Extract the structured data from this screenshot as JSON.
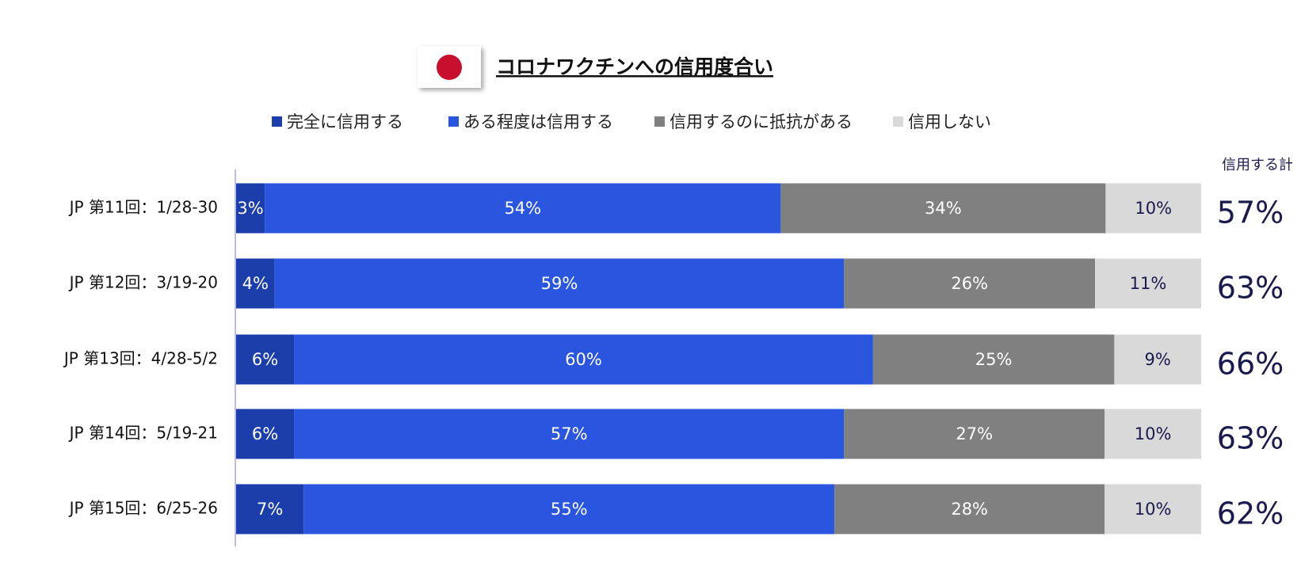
{
  "chart_data": {
    "type": "stacked-bar-horizontal",
    "title": "コロナワクチンへの信用度合い",
    "categories": [
      "JP 第11回：1/28-30",
      "JP 第12回：3/19-20",
      "JP 第13回：4/28-5/2",
      "JP 第14回：5/19-21",
      "JP 第15回：6/25-26"
    ],
    "series": [
      {
        "name": "完全に信用する",
        "color": "#1b3eab",
        "label_color": "#ffffff",
        "values": [
          3,
          4,
          6,
          6,
          7
        ],
        "value_labels": [
          "3%",
          "4%",
          "6%",
          "6%",
          "7%"
        ]
      },
      {
        "name": "ある程度は信用する",
        "color": "#2a55df",
        "label_color": "#ffffff",
        "values": [
          54,
          59,
          60,
          57,
          55
        ],
        "value_labels": [
          "54%",
          "59%",
          "60%",
          "57%",
          "55%"
        ]
      },
      {
        "name": "信用するのに抵抗がある",
        "color": "#808080",
        "label_color": "#ffffff",
        "values": [
          34,
          26,
          25,
          27,
          28
        ],
        "value_labels": [
          "34%",
          "26%",
          "25%",
          "27%",
          "28%"
        ]
      },
      {
        "name": "信用しない",
        "color": "#d9d9d9",
        "label_color": "#1a1a4e",
        "values": [
          10,
          11,
          9,
          10,
          10
        ],
        "value_labels": [
          "10%",
          "11%",
          "9%",
          "10%",
          "10%"
        ]
      }
    ],
    "totals": {
      "label": "信用する計",
      "color": "#1a1a4e",
      "values": [
        57,
        63,
        66,
        63,
        62
      ],
      "value_labels": [
        "57%",
        "63%",
        "66%",
        "63%",
        "62%"
      ]
    }
  }
}
